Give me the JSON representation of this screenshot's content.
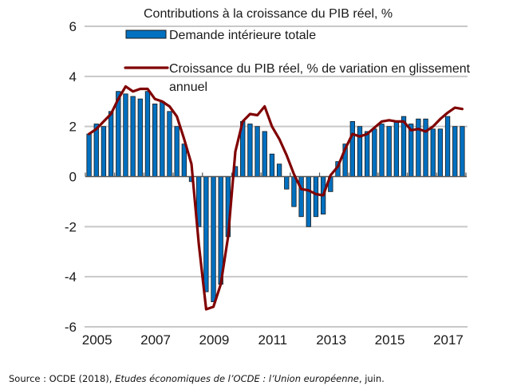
{
  "chart_data": {
    "type": "bar",
    "title": "Contributions à la croissance du PIB réel, %",
    "xlabel": "",
    "ylabel": "",
    "ylim": [
      -6,
      6
    ],
    "yticks": [
      "6",
      "4",
      "2",
      "0",
      "-2",
      "-4",
      "-6"
    ],
    "ytick_values": [
      6,
      4,
      2,
      0,
      -2,
      -4,
      -6
    ],
    "xticks": [
      "2005",
      "2007",
      "2009",
      "2011",
      "2013",
      "2015",
      "2017"
    ],
    "x_start": "2005Q1",
    "x_end": "2017Q4",
    "frequency": "quarterly",
    "grid": true,
    "legend_position": "top",
    "categories": [
      "2005Q1",
      "2005Q2",
      "2005Q3",
      "2005Q4",
      "2006Q1",
      "2006Q2",
      "2006Q3",
      "2006Q4",
      "2007Q1",
      "2007Q2",
      "2007Q3",
      "2007Q4",
      "2008Q1",
      "2008Q2",
      "2008Q3",
      "2008Q4",
      "2009Q1",
      "2009Q2",
      "2009Q3",
      "2009Q4",
      "2010Q1",
      "2010Q2",
      "2010Q3",
      "2010Q4",
      "2011Q1",
      "2011Q2",
      "2011Q3",
      "2011Q4",
      "2012Q1",
      "2012Q2",
      "2012Q3",
      "2012Q4",
      "2013Q1",
      "2013Q2",
      "2013Q3",
      "2013Q4",
      "2014Q1",
      "2014Q2",
      "2014Q3",
      "2014Q4",
      "2015Q1",
      "2015Q2",
      "2015Q3",
      "2015Q4",
      "2016Q1",
      "2016Q2",
      "2016Q3",
      "2016Q4",
      "2017Q1",
      "2017Q2",
      "2017Q3",
      "2017Q4"
    ],
    "series": [
      {
        "name": "Demande intérieure totale",
        "type": "bar",
        "color": "#0070C0",
        "values": [
          1.7,
          2.1,
          2.0,
          2.6,
          3.4,
          3.3,
          3.2,
          3.1,
          3.4,
          2.9,
          3.0,
          2.6,
          2.0,
          1.3,
          -0.2,
          -2.0,
          -4.6,
          -5.0,
          -4.3,
          -2.4,
          0.4,
          2.2,
          2.1,
          2.0,
          1.8,
          0.9,
          0.5,
          -0.5,
          -1.2,
          -1.6,
          -2.0,
          -1.6,
          -1.5,
          -0.6,
          0.6,
          1.3,
          2.2,
          2.0,
          1.8,
          1.9,
          2.1,
          2.0,
          2.2,
          2.4,
          2.1,
          2.3,
          2.3,
          1.9,
          1.9,
          2.4,
          2.0,
          2.0
        ]
      },
      {
        "name": "Croissance du PIB réel,  % de variation en glissement annuel",
        "legend_lines": [
          "Croissance du PIB réel,  % de variation en glissement",
          "annuel"
        ],
        "type": "line",
        "color": "#800000",
        "values": [
          1.7,
          1.9,
          2.2,
          2.5,
          3.1,
          3.6,
          3.4,
          3.5,
          3.5,
          3.1,
          3.0,
          2.8,
          2.4,
          1.5,
          0.5,
          -2.7,
          -5.3,
          -5.2,
          -4.3,
          -2.4,
          1.0,
          2.2,
          2.5,
          2.45,
          2.8,
          2.0,
          1.5,
          0.85,
          0.1,
          -0.5,
          -0.55,
          -0.7,
          -0.75,
          0.05,
          0.4,
          1.1,
          1.7,
          1.6,
          1.7,
          1.95,
          2.2,
          2.25,
          2.2,
          2.2,
          1.85,
          1.9,
          1.8,
          2.0,
          2.3,
          2.55,
          2.75,
          2.7
        ]
      }
    ]
  },
  "source": {
    "prefix": "Source : OCDE (2018), ",
    "title_italic": "Etudes économiques de l’OCDE : l’Union européenne",
    "suffix": ", juin."
  }
}
